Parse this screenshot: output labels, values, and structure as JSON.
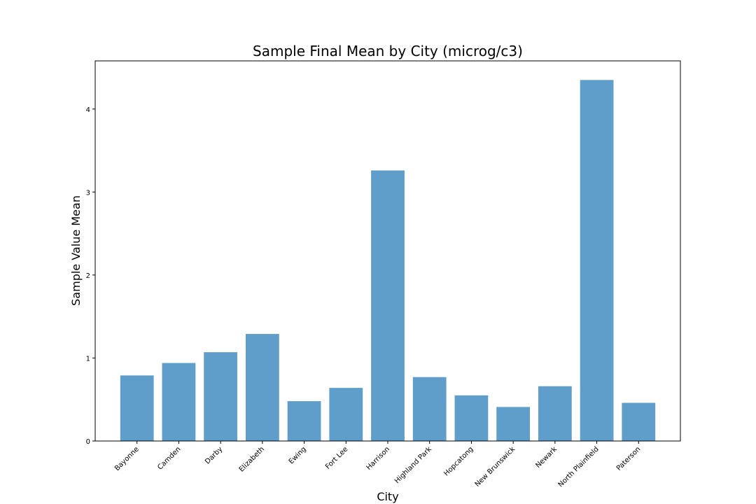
{
  "chart_data": {
    "type": "bar",
    "title": "Sample Final Mean by City (microg/c3)",
    "xlabel": "City",
    "ylabel": "Sample Value Mean",
    "categories": [
      "Bayonne",
      "Camden",
      "Darby",
      "Elizabeth",
      "Ewing",
      "Fort Lee",
      "Harrison",
      "Highland Park",
      "Hopcatong",
      "New Brunswick",
      "Newark",
      "North Plainfield",
      "Paterson"
    ],
    "values": [
      0.79,
      0.94,
      1.07,
      1.29,
      0.48,
      0.64,
      3.26,
      0.77,
      0.55,
      0.41,
      0.66,
      4.35,
      0.46
    ],
    "ylim": [
      0,
      4.58
    ],
    "yticks": [
      0,
      1,
      2,
      3,
      4
    ],
    "grid": false,
    "bar_color": "#5f9ecb"
  }
}
